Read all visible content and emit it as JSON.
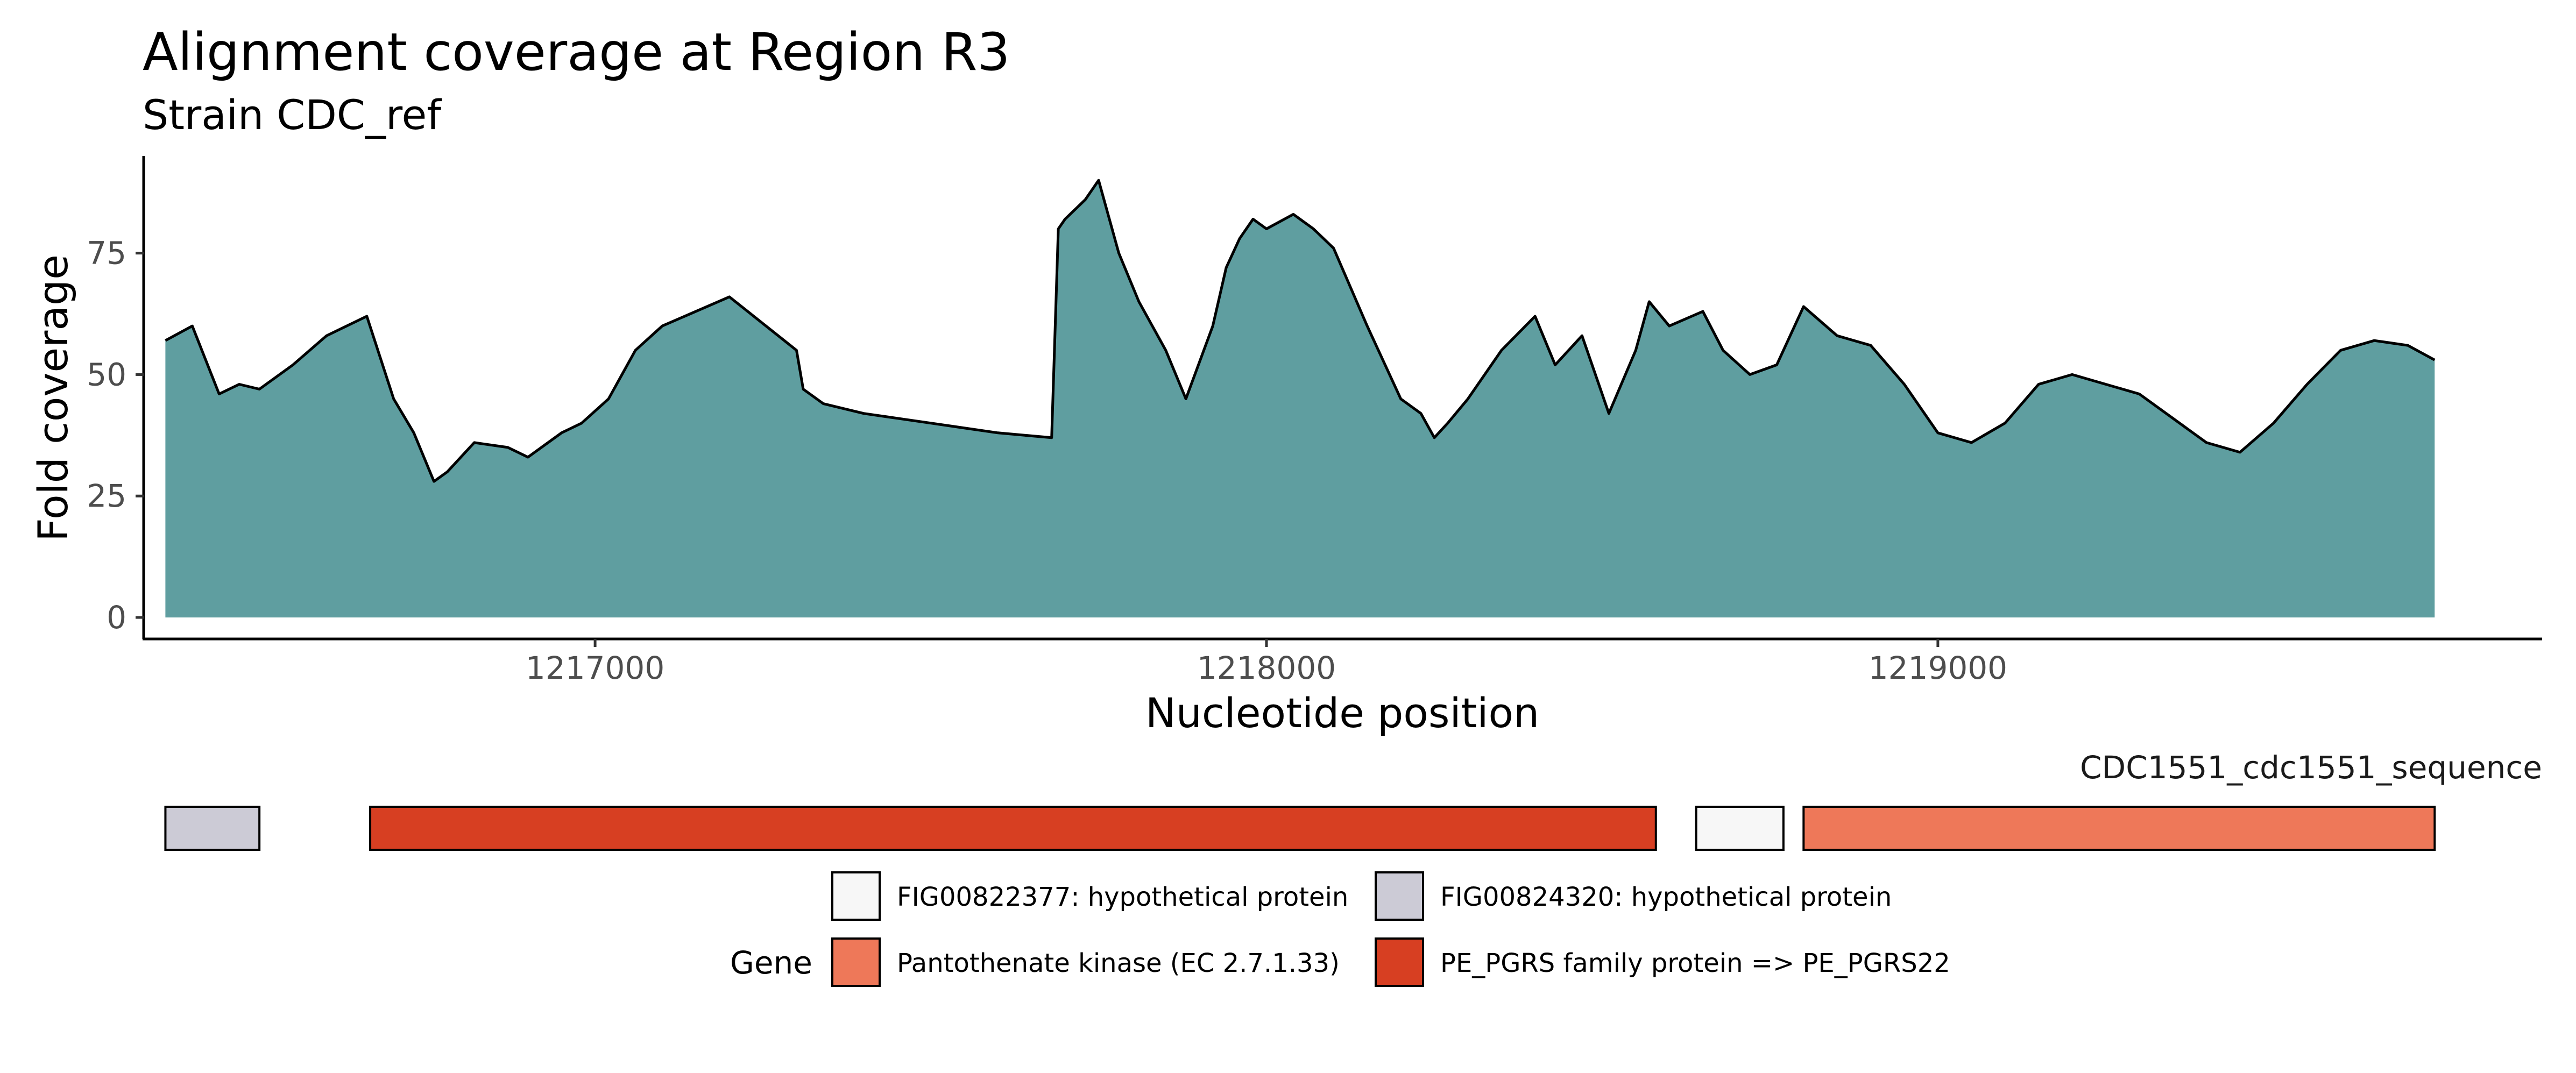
{
  "chart_data": [
    {
      "type": "area",
      "title": "Alignment coverage at Region R3",
      "subtitle": "Strain CDC_ref",
      "xlabel": "Nucleotide position",
      "ylabel": "Fold coverage",
      "xlim": [
        1216330,
        1219900
      ],
      "ylim": [
        0,
        95
      ],
      "x_ticks": [
        1217000,
        1218000,
        1219000
      ],
      "y_ticks": [
        0,
        25,
        50,
        75
      ],
      "fill_color": "#5f9ea0",
      "line_color": "#000000",
      "grid": false,
      "series": [
        {
          "x": [
            1216360,
            1216400,
            1216440,
            1216470,
            1216500,
            1216550,
            1216600,
            1216660,
            1216700,
            1216730,
            1216760,
            1216780,
            1216820,
            1216870,
            1216900,
            1216950,
            1216980,
            1217020,
            1217060,
            1217100,
            1217200,
            1217300,
            1217310,
            1217340,
            1217400,
            1217450,
            1217500,
            1217600,
            1217680,
            1217690,
            1217700,
            1217730,
            1217750,
            1217780,
            1217810,
            1217850,
            1217880,
            1217920,
            1217940,
            1217960,
            1217980,
            1218000,
            1218040,
            1218070,
            1218100,
            1218150,
            1218200,
            1218230,
            1218250,
            1218270,
            1218300,
            1218350,
            1218400,
            1218430,
            1218470,
            1218510,
            1218550,
            1218570,
            1218600,
            1218650,
            1218680,
            1218720,
            1218760,
            1218800,
            1218850,
            1218900,
            1218950,
            1219000,
            1219050,
            1219100,
            1219150,
            1219200,
            1219300,
            1219400,
            1219450,
            1219500,
            1219550,
            1219600,
            1219650,
            1219700,
            1219740
          ],
          "y": [
            57,
            60,
            46,
            48,
            47,
            52,
            58,
            62,
            45,
            38,
            28,
            30,
            36,
            35,
            33,
            38,
            40,
            45,
            55,
            60,
            66,
            55,
            47,
            44,
            42,
            41,
            40,
            38,
            37,
            80,
            82,
            86,
            90,
            75,
            65,
            55,
            45,
            60,
            72,
            78,
            82,
            80,
            83,
            80,
            76,
            60,
            45,
            42,
            37,
            40,
            45,
            55,
            62,
            52,
            58,
            42,
            55,
            65,
            60,
            63,
            55,
            50,
            52,
            64,
            58,
            56,
            48,
            38,
            36,
            40,
            48,
            50,
            46,
            36,
            34,
            40,
            48,
            55,
            57,
            56,
            53
          ]
        }
      ]
    },
    {
      "type": "gene_track",
      "strip_label": "CDC1551_cdc1551_sequence",
      "legend_title": "Gene",
      "genes": [
        {
          "start": 1216360,
          "end": 1216500,
          "name": "FIG00824320: hypothetical protein"
        },
        {
          "start": 1216665,
          "end": 1218580,
          "name": "PE_PGRS family protein => PE_PGRS22"
        },
        {
          "start": 1218640,
          "end": 1218770,
          "name": "FIG00822377: hypothetical protein"
        },
        {
          "start": 1218800,
          "end": 1219740,
          "name": "Pantothenate kinase (EC 2.7.1.33)"
        }
      ],
      "legend": [
        {
          "label": "FIG00822377: hypothetical protein",
          "color": "#f7f7f7"
        },
        {
          "label": "FIG00824320: hypothetical protein",
          "color": "#cccbd6"
        },
        {
          "label": "Pantothenate kinase (EC 2.7.1.33)",
          "color": "#ee7859"
        },
        {
          "label": "PE_PGRS family protein => PE_PGRS22",
          "color": "#d73f22"
        }
      ]
    }
  ]
}
